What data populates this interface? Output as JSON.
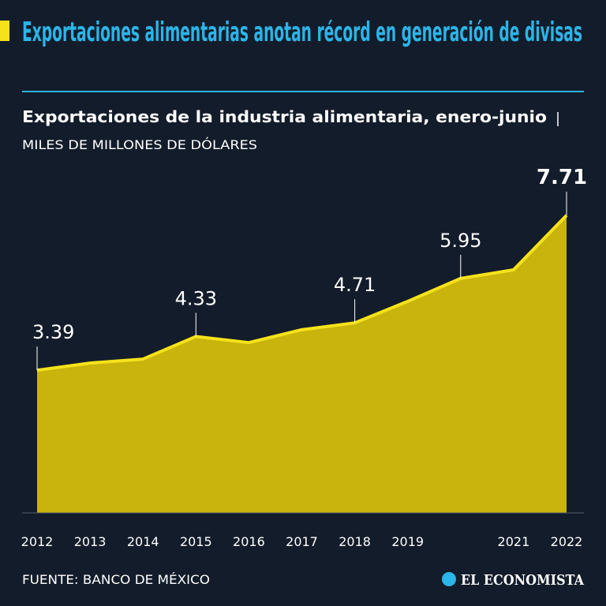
{
  "chart_data": {
    "type": "area",
    "title": "Exportaciones alimentarias anotan récord en generación de divisas",
    "subtitle": "Exportaciones de la industria alimentaria, enero-junio",
    "unit": "MILES DE MILLONES DE DÓLARES",
    "source": "FUENTE: BANCO DE MÉXICO",
    "brand": "EL ECONOMISTA",
    "categories": [
      "2012",
      "2013",
      "2014",
      "2015",
      "2016",
      "2017",
      "2018",
      "2019",
      null,
      "2021",
      "2022"
    ],
    "values": [
      3.39,
      3.59,
      3.7,
      4.33,
      4.16,
      4.52,
      4.71,
      5.31,
      5.95,
      6.19,
      7.71
    ],
    "value_labels": [
      "3.39",
      null,
      null,
      "4.33",
      null,
      null,
      "4.71",
      null,
      "5.95",
      null,
      "7.71"
    ],
    "color": "#c8b40c",
    "line_color": "#f5e21a",
    "ylim": [
      -0.59,
      8.5
    ]
  }
}
